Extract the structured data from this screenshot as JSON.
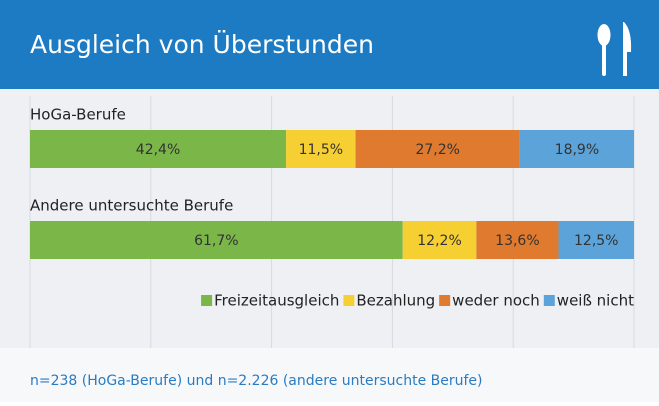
{
  "chart_data": {
    "type": "stacked_bar_horizontal",
    "title": "Ausgleich von Überstunden",
    "categories": [
      "HoGa-Berufe",
      "Andere untersuchte Berufe"
    ],
    "series": [
      {
        "name": "Freizeitausgleich",
        "color": "#7ab648",
        "values": [
          42.4,
          61.7
        ],
        "value_labels": [
          "42,4%",
          "61,7%"
        ]
      },
      {
        "name": "Bezahlung",
        "color": "#f6d033",
        "values": [
          11.5,
          12.2
        ],
        "value_labels": [
          "11,5%",
          "12,2%"
        ]
      },
      {
        "name": "weder noch",
        "color": "#df7a2f",
        "values": [
          27.2,
          13.6
        ],
        "value_labels": [
          "27,2%",
          "13,6%"
        ]
      },
      {
        "name": "weiß nicht",
        "color": "#5ba3d9",
        "values": [
          18.9,
          12.5
        ],
        "value_labels": [
          "18,9%",
          "12,5%"
        ]
      }
    ],
    "xlim": [
      0,
      100
    ],
    "xticks": [
      0,
      20,
      40,
      60,
      80,
      100
    ],
    "grid": true,
    "legend": "bottom-right",
    "note": "n=238 (HoGa-Berufe) und n=2.226 (andere untersuchte Berufe)"
  }
}
